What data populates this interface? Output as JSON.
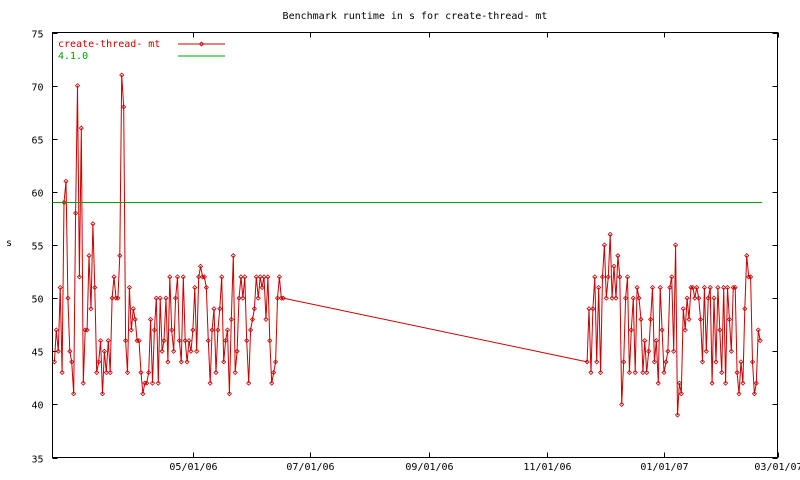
{
  "chart_data": {
    "type": "line",
    "title": "Benchmark runtime in s for create-thread-  mt",
    "xlabel": "",
    "ylabel": "s",
    "ylim": [
      35,
      75
    ],
    "xlim": [
      "2006-02-17",
      "2007-03-01"
    ],
    "yticks": [
      35,
      40,
      45,
      50,
      55,
      60,
      65,
      70,
      75
    ],
    "xticks": [
      {
        "date": "2006-05-01",
        "label": "05/01/06"
      },
      {
        "date": "2006-07-01",
        "label": "07/01/06"
      },
      {
        "date": "2006-09-01",
        "label": "09/01/06"
      },
      {
        "date": "2006-11-01",
        "label": "11/01/06"
      },
      {
        "date": "2007-01-01",
        "label": "01/01/07"
      },
      {
        "date": "2007-03-01",
        "label": "03/01/07"
      }
    ],
    "grid": false,
    "legend_position": "top-left",
    "series": [
      {
        "name": "create-thread-  mt",
        "color": "#cc0000",
        "marker": "diamond",
        "points": [
          [
            "2006-02-18",
            44
          ],
          [
            "2006-02-19",
            47
          ],
          [
            "2006-02-20",
            45
          ],
          [
            "2006-02-21",
            51
          ],
          [
            "2006-02-22",
            43
          ],
          [
            "2006-02-23",
            59
          ],
          [
            "2006-02-24",
            61
          ],
          [
            "2006-02-25",
            50
          ],
          [
            "2006-02-26",
            45
          ],
          [
            "2006-02-27",
            44
          ],
          [
            "2006-02-28",
            41
          ],
          [
            "2006-03-01",
            58
          ],
          [
            "2006-03-02",
            70
          ],
          [
            "2006-03-03",
            52
          ],
          [
            "2006-03-04",
            66
          ],
          [
            "2006-03-05",
            42
          ],
          [
            "2006-03-06",
            47
          ],
          [
            "2006-03-07",
            47
          ],
          [
            "2006-03-08",
            54
          ],
          [
            "2006-03-09",
            49
          ],
          [
            "2006-03-10",
            57
          ],
          [
            "2006-03-11",
            51
          ],
          [
            "2006-03-12",
            43
          ],
          [
            "2006-03-13",
            44
          ],
          [
            "2006-03-14",
            46
          ],
          [
            "2006-03-15",
            41
          ],
          [
            "2006-03-16",
            45
          ],
          [
            "2006-03-17",
            43
          ],
          [
            "2006-03-18",
            46
          ],
          [
            "2006-03-19",
            43
          ],
          [
            "2006-03-20",
            50
          ],
          [
            "2006-03-21",
            52
          ],
          [
            "2006-03-22",
            50
          ],
          [
            "2006-03-23",
            50
          ],
          [
            "2006-03-24",
            54
          ],
          [
            "2006-03-25",
            71
          ],
          [
            "2006-03-26",
            68
          ],
          [
            "2006-03-27",
            46
          ],
          [
            "2006-03-28",
            43
          ],
          [
            "2006-03-29",
            51
          ],
          [
            "2006-03-30",
            47
          ],
          [
            "2006-03-31",
            49
          ],
          [
            "2006-04-01",
            48
          ],
          [
            "2006-04-02",
            46
          ],
          [
            "2006-04-03",
            46
          ],
          [
            "2006-04-04",
            43
          ],
          [
            "2006-04-05",
            41
          ],
          [
            "2006-04-06",
            42
          ],
          [
            "2006-04-07",
            42
          ],
          [
            "2006-04-08",
            43
          ],
          [
            "2006-04-09",
            48
          ],
          [
            "2006-04-10",
            42
          ],
          [
            "2006-04-11",
            47
          ],
          [
            "2006-04-12",
            50
          ],
          [
            "2006-04-13",
            42
          ],
          [
            "2006-04-14",
            50
          ],
          [
            "2006-04-15",
            45
          ],
          [
            "2006-04-16",
            46
          ],
          [
            "2006-04-17",
            50
          ],
          [
            "2006-04-18",
            44
          ],
          [
            "2006-04-19",
            52
          ],
          [
            "2006-04-20",
            47
          ],
          [
            "2006-04-21",
            45
          ],
          [
            "2006-04-22",
            50
          ],
          [
            "2006-04-23",
            52
          ],
          [
            "2006-04-24",
            46
          ],
          [
            "2006-04-25",
            44
          ],
          [
            "2006-04-26",
            52
          ],
          [
            "2006-04-27",
            46
          ],
          [
            "2006-04-28",
            44
          ],
          [
            "2006-04-29",
            46
          ],
          [
            "2006-04-30",
            45
          ],
          [
            "2006-05-01",
            47
          ],
          [
            "2006-05-02",
            51
          ],
          [
            "2006-05-03",
            45
          ],
          [
            "2006-05-04",
            52
          ],
          [
            "2006-05-05",
            53
          ],
          [
            "2006-05-06",
            52
          ],
          [
            "2006-05-07",
            52
          ],
          [
            "2006-05-08",
            51
          ],
          [
            "2006-05-09",
            46
          ],
          [
            "2006-05-10",
            42
          ],
          [
            "2006-05-11",
            47
          ],
          [
            "2006-05-12",
            49
          ],
          [
            "2006-05-13",
            43
          ],
          [
            "2006-05-14",
            47
          ],
          [
            "2006-05-15",
            49
          ],
          [
            "2006-05-16",
            52
          ],
          [
            "2006-05-17",
            44
          ],
          [
            "2006-05-18",
            46
          ],
          [
            "2006-05-19",
            47
          ],
          [
            "2006-05-20",
            41
          ],
          [
            "2006-05-21",
            48
          ],
          [
            "2006-05-22",
            54
          ],
          [
            "2006-05-23",
            43
          ],
          [
            "2006-05-24",
            45
          ],
          [
            "2006-05-25",
            50
          ],
          [
            "2006-05-26",
            52
          ],
          [
            "2006-05-27",
            50
          ],
          [
            "2006-05-28",
            52
          ],
          [
            "2006-05-29",
            46
          ],
          [
            "2006-05-30",
            42
          ],
          [
            "2006-05-31",
            47
          ],
          [
            "2006-06-01",
            48
          ],
          [
            "2006-06-02",
            49
          ],
          [
            "2006-06-03",
            52
          ],
          [
            "2006-06-04",
            50
          ],
          [
            "2006-06-05",
            52
          ],
          [
            "2006-06-06",
            51
          ],
          [
            "2006-06-07",
            52
          ],
          [
            "2006-06-08",
            48
          ],
          [
            "2006-06-09",
            52
          ],
          [
            "2006-06-10",
            46
          ],
          [
            "2006-06-11",
            42
          ],
          [
            "2006-06-12",
            43
          ],
          [
            "2006-06-13",
            44
          ],
          [
            "2006-06-14",
            50
          ],
          [
            "2006-06-15",
            52
          ],
          [
            "2006-06-16",
            50
          ],
          [
            "2006-06-17",
            50
          ],
          [
            "2006-11-22",
            44
          ],
          [
            "2006-11-23",
            49
          ],
          [
            "2006-11-24",
            43
          ],
          [
            "2006-11-25",
            49
          ],
          [
            "2006-11-26",
            52
          ],
          [
            "2006-11-27",
            44
          ],
          [
            "2006-11-28",
            51
          ],
          [
            "2006-11-29",
            43
          ],
          [
            "2006-11-30",
            52
          ],
          [
            "2006-12-01",
            55
          ],
          [
            "2006-12-02",
            50
          ],
          [
            "2006-12-03",
            52
          ],
          [
            "2006-12-04",
            56
          ],
          [
            "2006-12-05",
            50
          ],
          [
            "2006-12-06",
            53
          ],
          [
            "2006-12-07",
            50
          ],
          [
            "2006-12-08",
            54
          ],
          [
            "2006-12-09",
            52
          ],
          [
            "2006-12-10",
            40
          ],
          [
            "2006-12-11",
            44
          ],
          [
            "2006-12-12",
            50
          ],
          [
            "2006-12-13",
            52
          ],
          [
            "2006-12-14",
            43
          ],
          [
            "2006-12-15",
            47
          ],
          [
            "2006-12-16",
            50
          ],
          [
            "2006-12-17",
            43
          ],
          [
            "2006-12-18",
            51
          ],
          [
            "2006-12-19",
            50
          ],
          [
            "2006-12-20",
            48
          ],
          [
            "2006-12-21",
            43
          ],
          [
            "2006-12-22",
            46
          ],
          [
            "2006-12-23",
            43
          ],
          [
            "2006-12-24",
            45
          ],
          [
            "2006-12-25",
            48
          ],
          [
            "2006-12-26",
            51
          ],
          [
            "2006-12-27",
            44
          ],
          [
            "2006-12-28",
            46
          ],
          [
            "2006-12-29",
            42
          ],
          [
            "2006-12-30",
            51
          ],
          [
            "2006-12-31",
            47
          ],
          [
            "2007-01-01",
            43
          ],
          [
            "2007-01-02",
            44
          ],
          [
            "2007-01-03",
            45
          ],
          [
            "2007-01-04",
            51
          ],
          [
            "2007-01-05",
            52
          ],
          [
            "2007-01-06",
            45
          ],
          [
            "2007-01-07",
            55
          ],
          [
            "2007-01-08",
            39
          ],
          [
            "2007-01-09",
            42
          ],
          [
            "2007-01-10",
            41
          ],
          [
            "2007-01-11",
            49
          ],
          [
            "2007-01-12",
            47
          ],
          [
            "2007-01-13",
            50
          ],
          [
            "2007-01-14",
            48
          ],
          [
            "2007-01-15",
            51
          ],
          [
            "2007-01-16",
            51
          ],
          [
            "2007-01-17",
            50
          ],
          [
            "2007-01-18",
            51
          ],
          [
            "2007-01-19",
            50
          ],
          [
            "2007-01-20",
            48
          ],
          [
            "2007-01-21",
            44
          ],
          [
            "2007-01-22",
            51
          ],
          [
            "2007-01-23",
            45
          ],
          [
            "2007-01-24",
            50
          ],
          [
            "2007-01-25",
            51
          ],
          [
            "2007-01-26",
            42
          ],
          [
            "2007-01-27",
            50
          ],
          [
            "2007-01-28",
            44
          ],
          [
            "2007-01-29",
            51
          ],
          [
            "2007-01-30",
            47
          ],
          [
            "2007-01-31",
            43
          ],
          [
            "2007-02-01",
            51
          ],
          [
            "2007-02-02",
            42
          ],
          [
            "2007-02-03",
            51
          ],
          [
            "2007-02-04",
            48
          ],
          [
            "2007-02-05",
            45
          ],
          [
            "2007-02-06",
            51
          ],
          [
            "2007-02-07",
            51
          ],
          [
            "2007-02-08",
            43
          ],
          [
            "2007-02-09",
            41
          ],
          [
            "2007-02-10",
            44
          ],
          [
            "2007-02-11",
            42
          ],
          [
            "2007-02-12",
            49
          ],
          [
            "2007-02-13",
            54
          ],
          [
            "2007-02-14",
            52
          ],
          [
            "2007-02-15",
            52
          ],
          [
            "2007-02-16",
            44
          ],
          [
            "2007-02-17",
            41
          ],
          [
            "2007-02-18",
            42
          ],
          [
            "2007-02-19",
            47
          ],
          [
            "2007-02-20",
            46
          ]
        ]
      },
      {
        "name": "4.1.0",
        "color": "#00a000",
        "marker": "none",
        "points": [
          [
            "2006-02-17",
            59
          ],
          [
            "2007-02-21",
            59
          ]
        ]
      }
    ]
  }
}
